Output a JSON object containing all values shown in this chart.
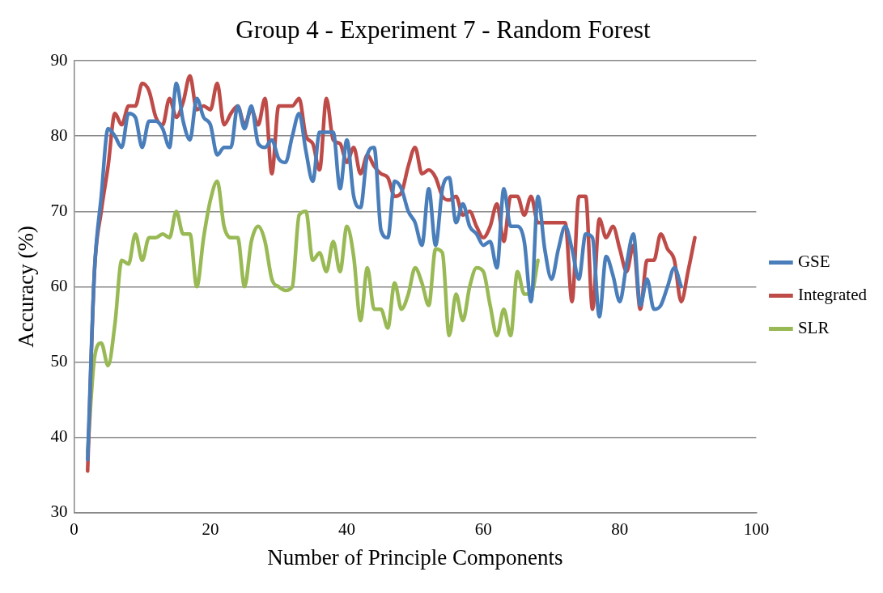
{
  "chart_data": {
    "type": "line",
    "title": "Group 4 - Experiment 7 - Random Forest",
    "xlabel": "Number of Principle Components",
    "ylabel": "Accuracy (%)",
    "x": [
      2,
      3,
      4,
      5,
      6,
      7,
      8,
      9,
      10,
      11,
      12,
      13,
      14,
      15,
      16,
      17,
      18,
      19,
      20,
      21,
      22,
      23,
      24,
      25,
      26,
      27,
      28,
      29,
      30,
      31,
      32,
      33,
      34,
      35,
      36,
      37,
      38,
      39,
      40,
      41,
      42,
      43,
      44,
      45,
      46,
      47,
      48,
      49,
      50,
      51,
      52,
      53,
      54,
      55,
      56,
      57,
      58,
      59,
      60,
      61,
      62,
      63,
      64,
      65,
      66,
      67,
      68,
      69,
      70,
      71,
      72,
      73,
      74,
      75,
      76,
      77,
      78,
      79,
      80,
      81,
      82,
      83,
      84,
      85,
      86,
      87,
      88,
      89,
      90,
      91
    ],
    "series": [
      {
        "name": "GSE",
        "color": "#4a7ebb",
        "values": [
          37,
          62,
          72,
          81,
          80,
          78.5,
          83,
          82.5,
          78.5,
          82,
          82,
          81,
          78.5,
          87,
          82,
          79.5,
          85,
          82.5,
          81.5,
          77.5,
          78.5,
          78.5,
          84,
          81,
          84,
          79,
          78.5,
          79.5,
          77,
          76.5,
          80,
          83,
          78,
          74,
          80.5,
          80.5,
          80.5,
          73,
          79.5,
          72,
          70.5,
          77.5,
          78.5,
          67.5,
          66.5,
          74,
          73,
          70,
          68.5,
          65.5,
          73,
          65.5,
          73,
          74.5,
          68.5,
          71,
          68,
          67,
          65.5,
          66,
          62.5,
          73,
          68,
          68,
          66,
          58,
          72,
          65,
          61,
          65,
          68,
          65,
          61,
          67,
          66.5,
          56,
          64,
          61.5,
          58,
          63,
          67,
          57.5,
          61,
          57,
          57.5,
          60,
          62.5,
          60,
          null,
          null
        ]
      },
      {
        "name": "Integrated",
        "color": "#be4b48",
        "values": [
          35.5,
          62,
          70,
          76,
          83,
          81.5,
          84,
          84,
          87,
          86,
          82.5,
          81.5,
          85,
          82.5,
          84.5,
          88,
          83.5,
          84,
          83.5,
          87,
          81.5,
          83,
          84,
          81.5,
          83.5,
          81.5,
          85,
          75,
          84,
          84,
          84,
          85,
          80,
          79,
          75.5,
          85,
          79.5,
          79,
          76.5,
          78.5,
          75,
          77.5,
          76,
          75,
          74.5,
          72,
          72.5,
          76,
          78.5,
          75,
          75.5,
          74.5,
          72,
          71.5,
          72,
          69.5,
          70,
          68,
          66.5,
          68,
          71,
          66,
          72,
          72,
          69.5,
          72,
          68.5,
          68.5,
          68.5,
          68.5,
          68.5,
          58,
          72,
          72,
          57,
          69,
          66.5,
          68,
          65,
          62,
          65.5,
          57,
          63.5,
          63.5,
          67,
          65,
          63.5,
          58,
          62,
          66.5
        ]
      },
      {
        "name": "SLR",
        "color": "#98b954",
        "values": [
          38,
          50.5,
          52.5,
          49.5,
          55,
          63.5,
          63,
          67,
          63.5,
          66.5,
          66.5,
          67,
          66.5,
          70,
          67,
          67,
          60,
          66.5,
          71.5,
          74,
          68,
          66.5,
          66.5,
          60,
          66,
          68,
          66,
          61,
          60,
          59.5,
          60,
          69.5,
          70,
          63.5,
          64.5,
          62,
          66,
          62,
          68,
          64,
          55.5,
          62.5,
          57,
          57,
          54.5,
          60.5,
          57,
          59,
          62.5,
          60.5,
          57.5,
          65,
          64.5,
          53.5,
          59,
          55.5,
          60,
          62.5,
          62,
          57.5,
          53.5,
          57,
          53.5,
          62,
          59,
          59,
          63.5,
          null,
          null,
          null,
          null,
          null,
          null,
          null,
          null,
          null,
          null,
          null,
          null,
          null,
          null,
          null,
          null,
          null,
          null,
          null,
          null,
          null,
          null,
          null
        ]
      }
    ],
    "xlim": [
      0,
      100
    ],
    "xticks": [
      0,
      20,
      40,
      60,
      80,
      100
    ],
    "ylim": [
      30,
      90
    ],
    "yticks": [
      30,
      40,
      50,
      60,
      70,
      80,
      90
    ],
    "grid": "y",
    "legend": "right",
    "marker": "none",
    "line_style": "solid"
  }
}
